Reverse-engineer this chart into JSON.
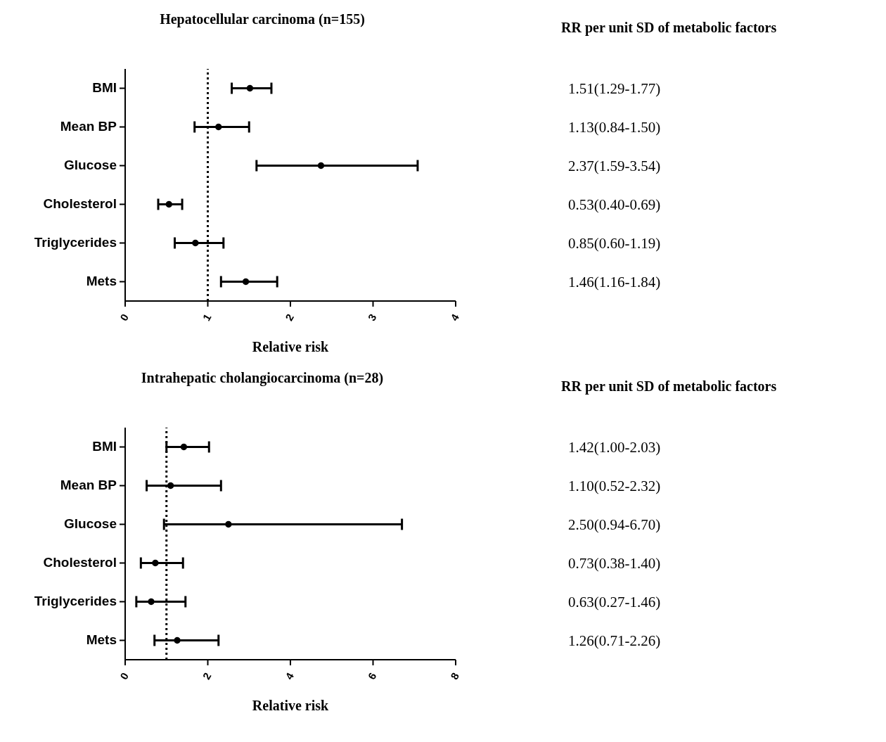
{
  "chart_data": [
    {
      "type": "scatter",
      "orientation": "horizontal",
      "title": "Hepatocellular carcinoma (n=155)",
      "xlabel": "Relative risk",
      "categories": [
        "BMI",
        "Mean BP",
        "Glucose",
        "Cholesterol",
        "Triglycerides",
        "Mets"
      ],
      "values": [
        1.51,
        1.13,
        2.37,
        0.53,
        0.85,
        1.46
      ],
      "color": "#000000",
      "marker": "circle",
      "errors": [
        [
          1.29,
          1.77
        ],
        [
          0.84,
          1.5
        ],
        [
          1.59,
          3.54
        ],
        [
          0.4,
          0.69
        ],
        [
          0.6,
          1.19
        ],
        [
          1.16,
          1.84
        ]
      ],
      "value_labels": [
        "1.51(1.29-1.77)",
        "1.13(0.84-1.50)",
        "2.37(1.59-3.54)",
        "0.53(0.40-0.69)",
        "0.85(0.60-1.19)",
        "1.46(1.16-1.84)"
      ],
      "annotations": [
        "RR per unit SD of metabolic factors"
      ],
      "ref_lines": [
        {
          "axis": "x",
          "value": 1,
          "line_style": "dotted",
          "color": "#000000"
        }
      ],
      "xlim": [
        0,
        4
      ],
      "xticks": [
        0,
        1,
        2,
        3,
        4
      ],
      "grid": false
    },
    {
      "type": "scatter",
      "orientation": "horizontal",
      "title": "Intrahepatic cholangiocarcinoma (n=28)",
      "xlabel": "Relative risk",
      "categories": [
        "BMI",
        "Mean BP",
        "Glucose",
        "Cholesterol",
        "Triglycerides",
        "Mets"
      ],
      "values": [
        1.42,
        1.1,
        2.5,
        0.73,
        0.63,
        1.26
      ],
      "color": "#000000",
      "marker": "circle",
      "errors": [
        [
          1.0,
          2.03
        ],
        [
          0.52,
          2.32
        ],
        [
          0.94,
          6.7
        ],
        [
          0.38,
          1.4
        ],
        [
          0.27,
          1.46
        ],
        [
          0.71,
          2.26
        ]
      ],
      "value_labels": [
        "1.42(1.00-2.03)",
        "1.10(0.52-2.32)",
        "2.50(0.94-6.70)",
        "0.73(0.38-1.40)",
        "0.63(0.27-1.46)",
        "1.26(0.71-2.26)"
      ],
      "annotations": [
        "RR per unit SD of metabolic factors"
      ],
      "ref_lines": [
        {
          "axis": "x",
          "value": 1,
          "line_style": "dotted",
          "color": "#000000"
        }
      ],
      "xlim": [
        0,
        8
      ],
      "xticks": [
        0,
        2,
        4,
        6,
        8
      ],
      "grid": false
    }
  ]
}
